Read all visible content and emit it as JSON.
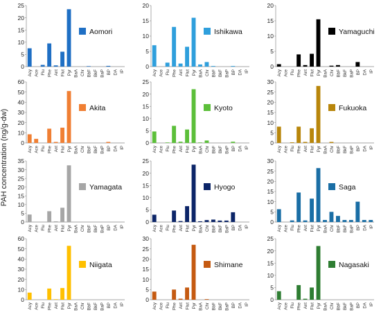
{
  "y_axis_label": "PAH concentration (ng/g-dw)",
  "categories": [
    "Acy",
    "Ace",
    "Flu",
    "Phe",
    "Ant",
    "Flut",
    "Pyr",
    "BaA",
    "Chr",
    "BbF",
    "BkF",
    "BaP",
    "BP",
    "DA",
    "IP"
  ],
  "chart_data": [
    {
      "type": "bar",
      "name": "Aomori",
      "color": "#1f6fc4",
      "ylim": [
        0,
        25
      ],
      "yticks": [
        0,
        5,
        10,
        15,
        20,
        25
      ],
      "values": [
        7.5,
        0,
        0.7,
        9.5,
        0.5,
        6.1,
        23.5,
        0,
        0,
        0.2,
        0,
        0,
        0.3,
        0,
        0
      ]
    },
    {
      "type": "bar",
      "name": "Ishikawa",
      "color": "#2f9fdc",
      "ylim": [
        0,
        20
      ],
      "yticks": [
        0,
        5,
        10,
        15,
        20
      ],
      "values": [
        7,
        0,
        1.3,
        13,
        1,
        6.5,
        16,
        0.7,
        1.5,
        0.2,
        0,
        0,
        0.2,
        0,
        0
      ]
    },
    {
      "type": "bar",
      "name": "Yamaguchi",
      "color": "#000000",
      "ylim": [
        0,
        20
      ],
      "yticks": [
        0,
        5,
        10,
        15,
        20
      ],
      "values": [
        0.8,
        0,
        0,
        4,
        0.5,
        4.2,
        15.5,
        0,
        0.3,
        0.5,
        0,
        0,
        1.5,
        0,
        0
      ]
    },
    {
      "type": "bar",
      "name": "Akita",
      "color": "#f07f33",
      "ylim": [
        0,
        60
      ],
      "yticks": [
        0,
        10,
        20,
        30,
        40,
        50,
        60
      ],
      "values": [
        8.5,
        4,
        0,
        14,
        1,
        15,
        51,
        0,
        0,
        0,
        0,
        0,
        1,
        0,
        0
      ]
    },
    {
      "type": "bar",
      "name": "Kyoto",
      "color": "#5cbf3a",
      "ylim": [
        0,
        25
      ],
      "yticks": [
        0,
        5,
        10,
        15,
        20,
        25
      ],
      "values": [
        4.7,
        0,
        0.2,
        7,
        0.5,
        5.5,
        22,
        0.2,
        1,
        0,
        0,
        0,
        0.5,
        0,
        0
      ]
    },
    {
      "type": "bar",
      "name": "Fukuoka",
      "color": "#b8860b",
      "ylim": [
        0,
        30
      ],
      "yticks": [
        0,
        5,
        10,
        15,
        20,
        25,
        30
      ],
      "values": [
        8,
        0,
        0.3,
        8,
        0.5,
        7.2,
        28,
        0,
        0.5,
        0,
        0,
        0,
        0,
        0,
        0
      ]
    },
    {
      "type": "bar",
      "name": "Yamagata",
      "color": "#a6a6a6",
      "ylim": [
        0,
        35
      ],
      "yticks": [
        0,
        5,
        10,
        15,
        20,
        25,
        30,
        35
      ],
      "values": [
        4.3,
        0,
        0.2,
        6.2,
        0.4,
        8.2,
        32.5,
        0,
        0,
        0,
        0,
        0,
        0,
        0,
        0
      ]
    },
    {
      "type": "bar",
      "name": "Hyogo",
      "color": "#0c2568",
      "ylim": [
        0,
        25
      ],
      "yticks": [
        0,
        5,
        10,
        15,
        20,
        25
      ],
      "values": [
        3,
        0,
        0,
        4.7,
        0.4,
        6.5,
        23.5,
        0.3,
        0.8,
        1,
        0.6,
        0.6,
        4,
        0,
        0
      ]
    },
    {
      "type": "bar",
      "name": "Saga",
      "color": "#1a6ea5",
      "ylim": [
        0,
        30
      ],
      "yticks": [
        0,
        5,
        10,
        15,
        20,
        25,
        30
      ],
      "values": [
        6.3,
        0,
        0.8,
        14.5,
        0.8,
        11.5,
        26.5,
        1,
        5,
        3,
        1,
        1,
        10,
        1,
        1
      ]
    },
    {
      "type": "bar",
      "name": "Niigata",
      "color": "#ffc000",
      "ylim": [
        0,
        60
      ],
      "yticks": [
        0,
        10,
        20,
        30,
        40,
        50,
        60
      ],
      "values": [
        7,
        0,
        0,
        11,
        0.5,
        11.5,
        53,
        0,
        0,
        0,
        0,
        0,
        0,
        0,
        0
      ]
    },
    {
      "type": "bar",
      "name": "Shimane",
      "color": "#c55a11",
      "ylim": [
        0,
        30
      ],
      "yticks": [
        0,
        5,
        10,
        15,
        20,
        25,
        30
      ],
      "values": [
        4,
        0,
        0,
        5,
        0.5,
        6,
        27,
        0,
        0.3,
        0,
        0,
        0,
        0,
        0,
        0
      ]
    },
    {
      "type": "bar",
      "name": "Nagasaki",
      "color": "#2e7d32",
      "ylim": [
        0,
        25
      ],
      "yticks": [
        0,
        5,
        10,
        15,
        20,
        25
      ],
      "values": [
        3.5,
        0,
        0,
        6,
        0.4,
        5,
        22,
        0,
        0,
        0,
        0,
        0,
        0,
        0,
        0
      ]
    }
  ]
}
